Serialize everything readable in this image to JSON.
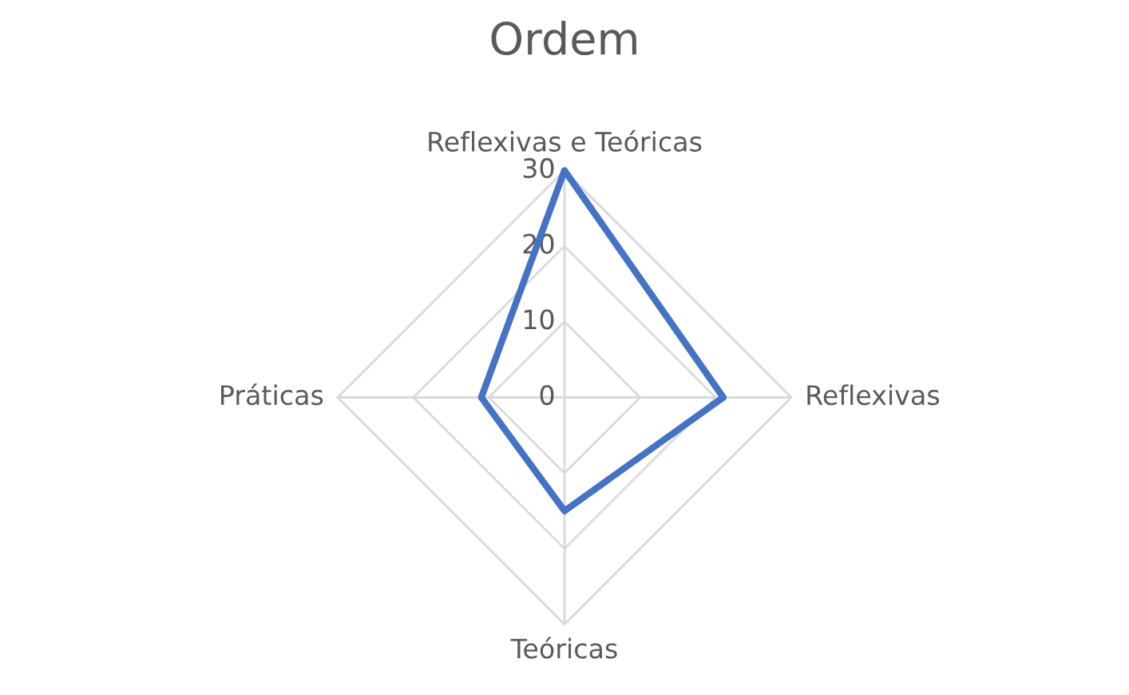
{
  "chart_data": {
    "type": "radar",
    "title": "Ordem",
    "categories": [
      "Reflexivas e Teóricas",
      "Reflexivas",
      "Teóricas",
      "Práticas"
    ],
    "series": [
      {
        "color": "#4472c4",
        "values": [
          30,
          21,
          15,
          11
        ]
      }
    ],
    "ylim": [
      0,
      30
    ],
    "yticks": [
      0,
      10,
      20,
      30
    ],
    "grid": true,
    "legend": false
  }
}
